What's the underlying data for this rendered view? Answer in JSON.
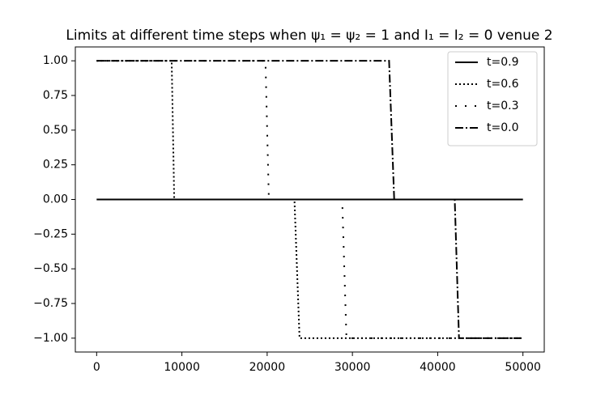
{
  "chart_data": {
    "type": "line",
    "title": "Limits at different time steps when ψ₁ = ψ₂ = 1 and I₁ = I₂ = 0 venue 2",
    "series": [
      {
        "name": "t=0.9",
        "color": "#000000",
        "linestyle": "-",
        "x": [
          0,
          50000
        ],
        "values": [
          0,
          0
        ]
      },
      {
        "name": "t=0.6",
        "color": "#000000",
        "linestyle": ":",
        "x": [
          0,
          8800,
          9100,
          23200,
          23800,
          50000
        ],
        "values": [
          1,
          1,
          0,
          0,
          -1,
          -1
        ]
      },
      {
        "name": "t=0.3",
        "color": "#000000",
        "linestyle": "loose:",
        "x": [
          0,
          19800,
          20200,
          28800,
          29300,
          50000
        ],
        "values": [
          1,
          1,
          0,
          0,
          -1,
          -1
        ]
      },
      {
        "name": "t=0.0",
        "color": "#000000",
        "linestyle": "-.",
        "x": [
          0,
          34300,
          34900,
          42000,
          42500,
          50000
        ],
        "values": [
          1,
          1,
          0,
          0,
          -1,
          -1
        ]
      }
    ],
    "xlim": [
      -2500,
      52500
    ],
    "xticks": [
      0,
      10000,
      20000,
      30000,
      40000,
      50000
    ],
    "ylim": [
      -1.1,
      1.1
    ],
    "yticks": [
      {
        "value": 1,
        "label": "1.00"
      },
      {
        "value": 0.75,
        "label": "0.75"
      },
      {
        "value": 0.5,
        "label": "0.50"
      },
      {
        "value": 0.25,
        "label": "0.25"
      },
      {
        "value": 0,
        "label": "0.00"
      },
      {
        "value": -0.25,
        "label": "−0.25"
      },
      {
        "value": -0.5,
        "label": "−0.50"
      },
      {
        "value": -0.75,
        "label": "−0.75"
      },
      {
        "value": -1,
        "label": "−1.00"
      }
    ],
    "legend": "upper right"
  }
}
